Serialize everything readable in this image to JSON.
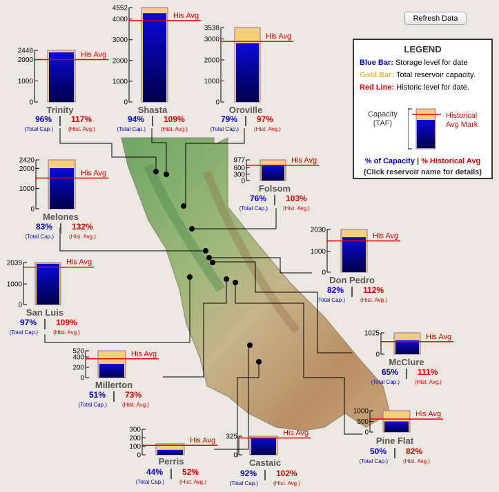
{
  "refresh_label": "Refresh Data",
  "colors": {
    "storage": "#0000b8",
    "capacity": "#f7cf7a",
    "avg_line": "#e00000",
    "name": "#555555"
  },
  "legend": {
    "title": "LEGEND",
    "blue_label": "Blue Bar:",
    "blue_text": "Storage level for date",
    "gold_label": "Gold Bar:",
    "gold_text": "Total reservoir capacity.",
    "red_label": "Red Line:",
    "red_text": "Historic level for date.",
    "capacity_label": "Capacity\n(TAF)",
    "hist_label": "Historical\nAvg Mark",
    "pct_cap": "% of Capacity",
    "sep": "|",
    "pct_avg": "% Historical Avg",
    "click_note": "(Click reservoir name for details)"
  },
  "common": {
    "avg_label": "His Avg",
    "total_cap": "(Total Cap.)",
    "hist_avg": "(Hist. Avg.)"
  },
  "reservoirs": [
    {
      "name": "Trinity",
      "capacity": 2448,
      "storage": 2350,
      "avg": 2009,
      "pct_capacity": "96%",
      "pct_avg": "117%",
      "ticks": [
        0,
        1000,
        2000
      ],
      "cap_tick": "2448"
    },
    {
      "name": "Shasta",
      "capacity": 4552,
      "storage": 4280,
      "avg": 3925,
      "pct_capacity": "94%",
      "pct_avg": "109%",
      "ticks": [
        0,
        1000,
        2000,
        3000,
        4000
      ],
      "cap_tick": "4552"
    },
    {
      "name": "Oroville",
      "capacity": 3538,
      "storage": 2795,
      "avg": 2880,
      "pct_capacity": "79%",
      "pct_avg": "97%",
      "ticks": [
        0,
        1000,
        2000,
        3000
      ],
      "cap_tick": "3538"
    },
    {
      "name": "Folsom",
      "capacity": 977,
      "storage": 742,
      "avg": 721,
      "pct_capacity": "76%",
      "pct_avg": "103%",
      "ticks": [
        0,
        300,
        600
      ],
      "cap_tick": "977"
    },
    {
      "name": "Melones",
      "capacity": 2420,
      "storage": 2009,
      "avg": 1522,
      "pct_capacity": "83%",
      "pct_avg": "132%",
      "ticks": [
        0,
        1000,
        2000
      ],
      "cap_tick": "2420"
    },
    {
      "name": "Don Pedro",
      "capacity": 2030,
      "storage": 1665,
      "avg": 1486,
      "pct_capacity": "82%",
      "pct_avg": "112%",
      "ticks": [
        0,
        1000
      ],
      "cap_tick": "2030"
    },
    {
      "name": "San Luis",
      "capacity": 2039,
      "storage": 1978,
      "avg": 1815,
      "pct_capacity": "97%",
      "pct_avg": "109%",
      "ticks": [
        0,
        1000
      ],
      "cap_tick": "2039"
    },
    {
      "name": "McClure",
      "capacity": 1025,
      "storage": 666,
      "avg": 600,
      "pct_capacity": "65%",
      "pct_avg": "111%",
      "ticks": [
        0
      ],
      "cap_tick": "1025"
    },
    {
      "name": "Millerton",
      "capacity": 520,
      "storage": 265,
      "avg": 363,
      "pct_capacity": "51%",
      "pct_avg": "73%",
      "ticks": [
        0,
        200,
        400
      ],
      "cap_tick": "520"
    },
    {
      "name": "Pine Flat",
      "capacity": 1000,
      "storage": 500,
      "avg": 610,
      "pct_capacity": "50%",
      "pct_avg": "82%",
      "ticks": [
        0,
        500,
        1000
      ],
      "cap_tick": ""
    },
    {
      "name": "Perris",
      "capacity": 131,
      "storage": 58,
      "avg": 111,
      "pct_capacity": "44%",
      "pct_avg": "52%",
      "ticks": [
        0,
        100,
        200,
        300
      ],
      "cap_tick": ""
    },
    {
      "name": "Castaic",
      "capacity": 325,
      "storage": 299,
      "avg": 293,
      "pct_capacity": "92%",
      "pct_avg": "102%",
      "ticks": [
        0
      ],
      "cap_tick": "325"
    }
  ]
}
